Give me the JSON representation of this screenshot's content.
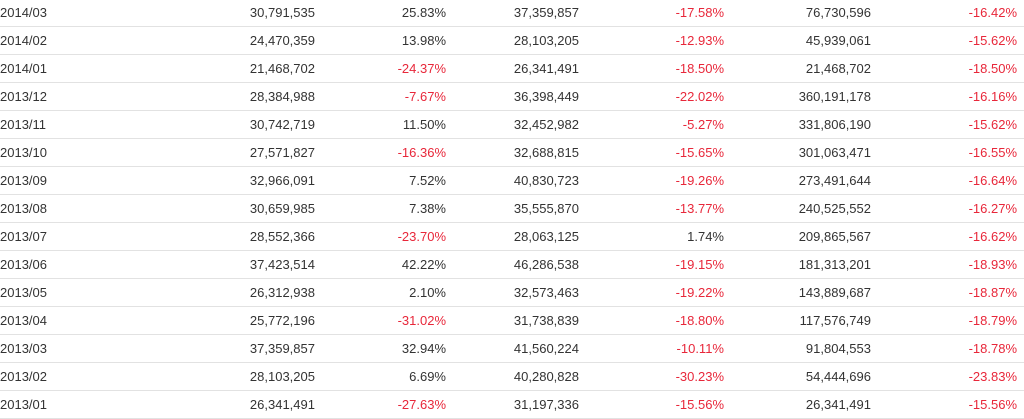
{
  "table": {
    "rows": [
      {
        "month": "2014/03",
        "v1": "30,791,535",
        "p1": "25.83%",
        "v2": "37,359,857",
        "p2": "-17.58%",
        "v3": "76,730,596",
        "p3": "-16.42%"
      },
      {
        "month": "2014/02",
        "v1": "24,470,359",
        "p1": "13.98%",
        "v2": "28,103,205",
        "p2": "-12.93%",
        "v3": "45,939,061",
        "p3": "-15.62%"
      },
      {
        "month": "2014/01",
        "v1": "21,468,702",
        "p1": "-24.37%",
        "v2": "26,341,491",
        "p2": "-18.50%",
        "v3": "21,468,702",
        "p3": "-18.50%"
      },
      {
        "month": "2013/12",
        "v1": "28,384,988",
        "p1": "-7.67%",
        "v2": "36,398,449",
        "p2": "-22.02%",
        "v3": "360,191,178",
        "p3": "-16.16%"
      },
      {
        "month": "2013/11",
        "v1": "30,742,719",
        "p1": "11.50%",
        "v2": "32,452,982",
        "p2": "-5.27%",
        "v3": "331,806,190",
        "p3": "-15.62%"
      },
      {
        "month": "2013/10",
        "v1": "27,571,827",
        "p1": "-16.36%",
        "v2": "32,688,815",
        "p2": "-15.65%",
        "v3": "301,063,471",
        "p3": "-16.55%"
      },
      {
        "month": "2013/09",
        "v1": "32,966,091",
        "p1": "7.52%",
        "v2": "40,830,723",
        "p2": "-19.26%",
        "v3": "273,491,644",
        "p3": "-16.64%"
      },
      {
        "month": "2013/08",
        "v1": "30,659,985",
        "p1": "7.38%",
        "v2": "35,555,870",
        "p2": "-13.77%",
        "v3": "240,525,552",
        "p3": "-16.27%"
      },
      {
        "month": "2013/07",
        "v1": "28,552,366",
        "p1": "-23.70%",
        "v2": "28,063,125",
        "p2": "1.74%",
        "v3": "209,865,567",
        "p3": "-16.62%"
      },
      {
        "month": "2013/06",
        "v1": "37,423,514",
        "p1": "42.22%",
        "v2": "46,286,538",
        "p2": "-19.15%",
        "v3": "181,313,201",
        "p3": "-18.93%"
      },
      {
        "month": "2013/05",
        "v1": "26,312,938",
        "p1": "2.10%",
        "v2": "32,573,463",
        "p2": "-19.22%",
        "v3": "143,889,687",
        "p3": "-18.87%"
      },
      {
        "month": "2013/04",
        "v1": "25,772,196",
        "p1": "-31.02%",
        "v2": "31,738,839",
        "p2": "-18.80%",
        "v3": "117,576,749",
        "p3": "-18.79%"
      },
      {
        "month": "2013/03",
        "v1": "37,359,857",
        "p1": "32.94%",
        "v2": "41,560,224",
        "p2": "-10.11%",
        "v3": "91,804,553",
        "p3": "-18.78%"
      },
      {
        "month": "2013/02",
        "v1": "28,103,205",
        "p1": "6.69%",
        "v2": "40,280,828",
        "p2": "-30.23%",
        "v3": "54,444,696",
        "p3": "-23.83%"
      },
      {
        "month": "2013/01",
        "v1": "26,341,491",
        "p1": "-27.63%",
        "v2": "31,197,336",
        "p2": "-15.56%",
        "v3": "26,341,491",
        "p3": "-15.56%"
      }
    ]
  },
  "colors": {
    "negative": "#e8273a",
    "text": "#333333",
    "row_border": "#e2e2e2"
  }
}
